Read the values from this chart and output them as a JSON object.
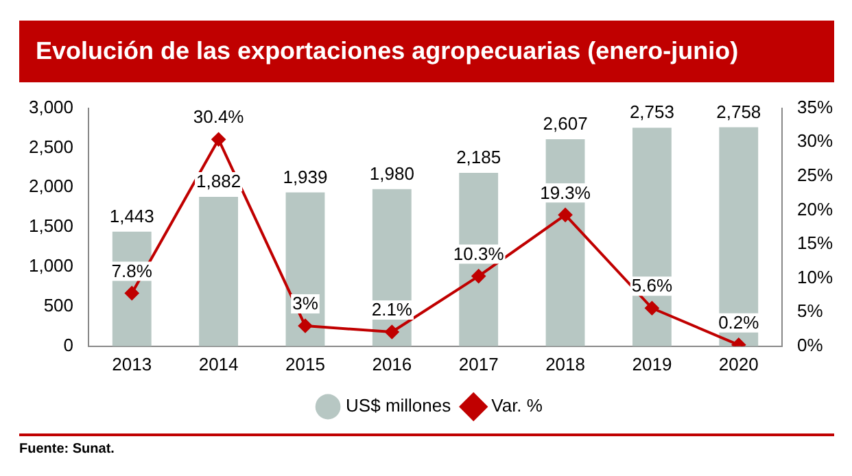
{
  "chart_data": {
    "type": "bar",
    "title": "Evolución de las exportaciones agropecuarias (enero-junio)",
    "categories": [
      "2013",
      "2014",
      "2015",
      "2016",
      "2017",
      "2018",
      "2019",
      "2020"
    ],
    "series": [
      {
        "name": "US$ millones",
        "color": "#b7c7c3",
        "values": [
          1443,
          1882,
          1939,
          1980,
          2185,
          2607,
          2753,
          2758
        ],
        "value_labels": [
          "1,443",
          "1,882",
          "1,939",
          "1,980",
          "2,185",
          "2,607",
          "2,753",
          "2,758"
        ]
      },
      {
        "name": "Var. %",
        "type": "line",
        "axis": "y2",
        "color": "#c00000",
        "marker": "diamond",
        "line_style": "solid",
        "values": [
          7.8,
          30.4,
          3,
          2.1,
          10.3,
          19.3,
          5.6,
          0.2
        ],
        "value_labels": [
          "7.8%",
          "30.4%",
          "3%",
          "2.1%",
          "10.3%",
          "19.3%",
          "5.6%",
          "0.2%"
        ]
      }
    ],
    "ylim": [
      0,
      3000
    ],
    "yticks": [
      {
        "value": 0,
        "label": "0"
      },
      {
        "value": 500,
        "label": "500"
      },
      {
        "value": 1000,
        "label": "1,000"
      },
      {
        "value": 1500,
        "label": "1,500"
      },
      {
        "value": 2000,
        "label": "2,000"
      },
      {
        "value": 2500,
        "label": "2,500"
      },
      {
        "value": 3000,
        "label": "3,000"
      }
    ],
    "y2lim": [
      0,
      35
    ],
    "y2ticks": [
      {
        "value": 0,
        "label": "0%"
      },
      {
        "value": 5,
        "label": "5%"
      },
      {
        "value": 10,
        "label": "10%"
      },
      {
        "value": 15,
        "label": "15%"
      },
      {
        "value": 20,
        "label": "20%"
      },
      {
        "value": 25,
        "label": "25%"
      },
      {
        "value": 30,
        "label": "30%"
      },
      {
        "value": 35,
        "label": "35%"
      }
    ],
    "grid": false,
    "legend": "bottom",
    "annotations": [
      "Fuente: Sunat."
    ]
  }
}
